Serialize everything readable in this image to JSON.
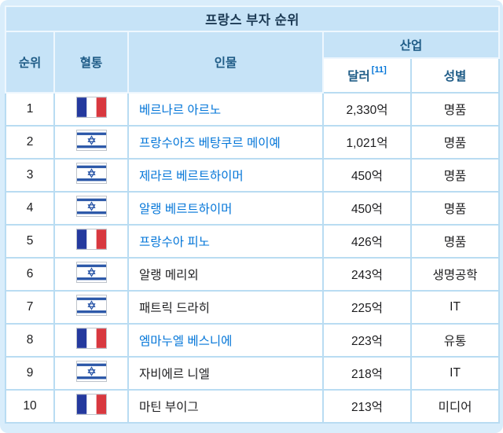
{
  "title": "프랑스 부자 순위",
  "table": {
    "headers": {
      "rank": "순위",
      "lineage": "혈통",
      "person": "인물",
      "industry_group": "산업",
      "dollar": "달러",
      "dollar_footnote": "[11]",
      "gender": "성별"
    },
    "rows": [
      {
        "rank": "1",
        "flag": "france",
        "name": "베르나르 아르노",
        "is_link": true,
        "amount": "2,330억",
        "industry": "명품"
      },
      {
        "rank": "2",
        "flag": "israel",
        "name": "프랑수아즈 베탕쿠르 메이예",
        "is_link": true,
        "amount": "1,021억",
        "industry": "명품"
      },
      {
        "rank": "3",
        "flag": "israel",
        "name": "제라르 베르트하이머",
        "is_link": true,
        "amount": "450억",
        "industry": "명품"
      },
      {
        "rank": "4",
        "flag": "israel",
        "name": "알랭 베르트하이머",
        "is_link": true,
        "amount": "450억",
        "industry": "명품"
      },
      {
        "rank": "5",
        "flag": "france",
        "name": "프랑수아 피노",
        "is_link": true,
        "amount": "426억",
        "industry": "명품"
      },
      {
        "rank": "6",
        "flag": "israel",
        "name": "알랭 메리외",
        "is_link": false,
        "amount": "243억",
        "industry": "생명공학"
      },
      {
        "rank": "7",
        "flag": "israel",
        "name": "패트릭 드라히",
        "is_link": false,
        "amount": "225억",
        "industry": "IT"
      },
      {
        "rank": "8",
        "flag": "france",
        "name": "엠마누엘 베스니에",
        "is_link": true,
        "amount": "223억",
        "industry": "유통"
      },
      {
        "rank": "9",
        "flag": "israel",
        "name": "자비에르 니엘",
        "is_link": false,
        "amount": "218억",
        "industry": "IT"
      },
      {
        "rank": "10",
        "flag": "france",
        "name": "마틴 부이그",
        "is_link": false,
        "amount": "213억",
        "industry": "미디어"
      }
    ]
  },
  "colors": {
    "page_bg": "#d9edfb",
    "header_bg": "#c6e3f7",
    "grid_line": "#b9dcf2",
    "title_text": "#1c3a54",
    "header_text": "#1f5c87",
    "link": "#0275d8",
    "text": "#1d1d1f"
  }
}
